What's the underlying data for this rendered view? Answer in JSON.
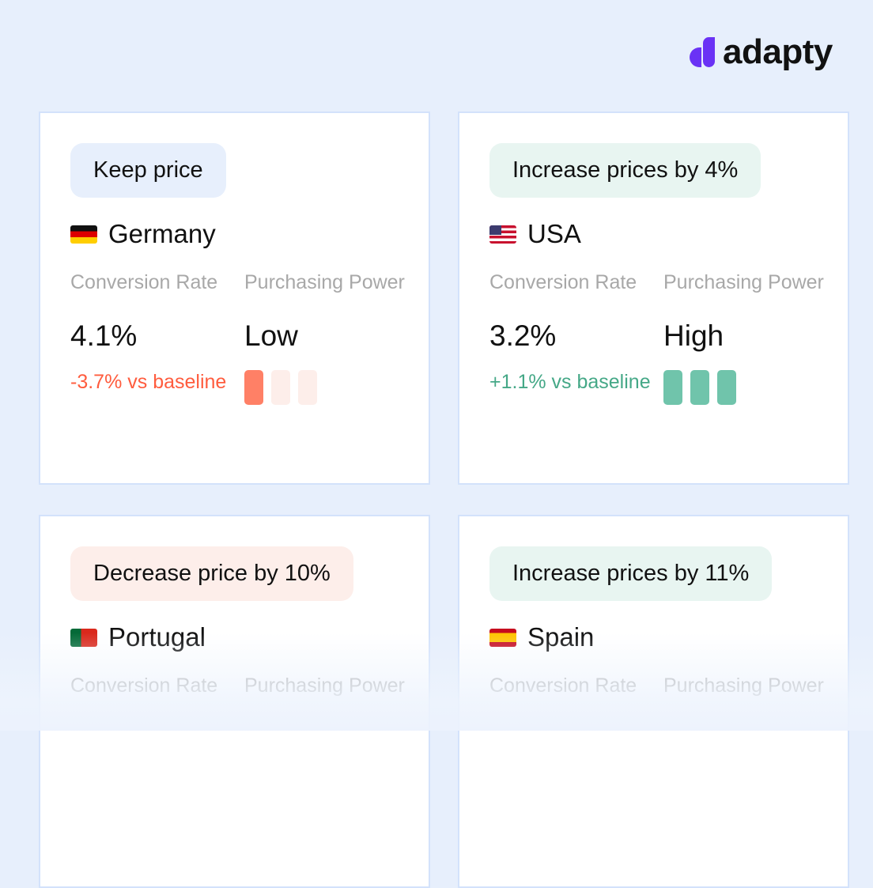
{
  "brand": {
    "name": "adapty",
    "color": "#6a32f5"
  },
  "labels": {
    "conversion": "Conversion Rate",
    "purchasing": "Purchasing Power"
  },
  "cards": [
    {
      "recommendation": "Keep price",
      "country": "Germany",
      "flag": "flag-germany",
      "conversion": "4.1%",
      "delta": "-3.7% vs baseline",
      "power": "Low",
      "power_level": 1,
      "pill_color": "#e7effc",
      "delta_color": "#ff5c3e",
      "bar_on": "#ff8066",
      "bar_off": "#fdeeea"
    },
    {
      "recommendation": "Increase prices by 4%",
      "country": "USA",
      "flag": "flag-usa",
      "conversion": "3.2%",
      "delta": "+1.1% vs baseline",
      "power": "High",
      "power_level": 3,
      "pill_color": "#e8f5f1",
      "delta_color": "#45a887",
      "bar_on": "#70c4ab",
      "bar_off": "#e8f5f1"
    },
    {
      "recommendation": "Decrease price by 10%",
      "country": "Portugal",
      "flag": "flag-portugal",
      "pill_color": "#fdeeea"
    },
    {
      "recommendation": "Increase prices by 11%",
      "country": "Spain",
      "flag": "flag-spain",
      "pill_color": "#e8f5f1"
    }
  ]
}
